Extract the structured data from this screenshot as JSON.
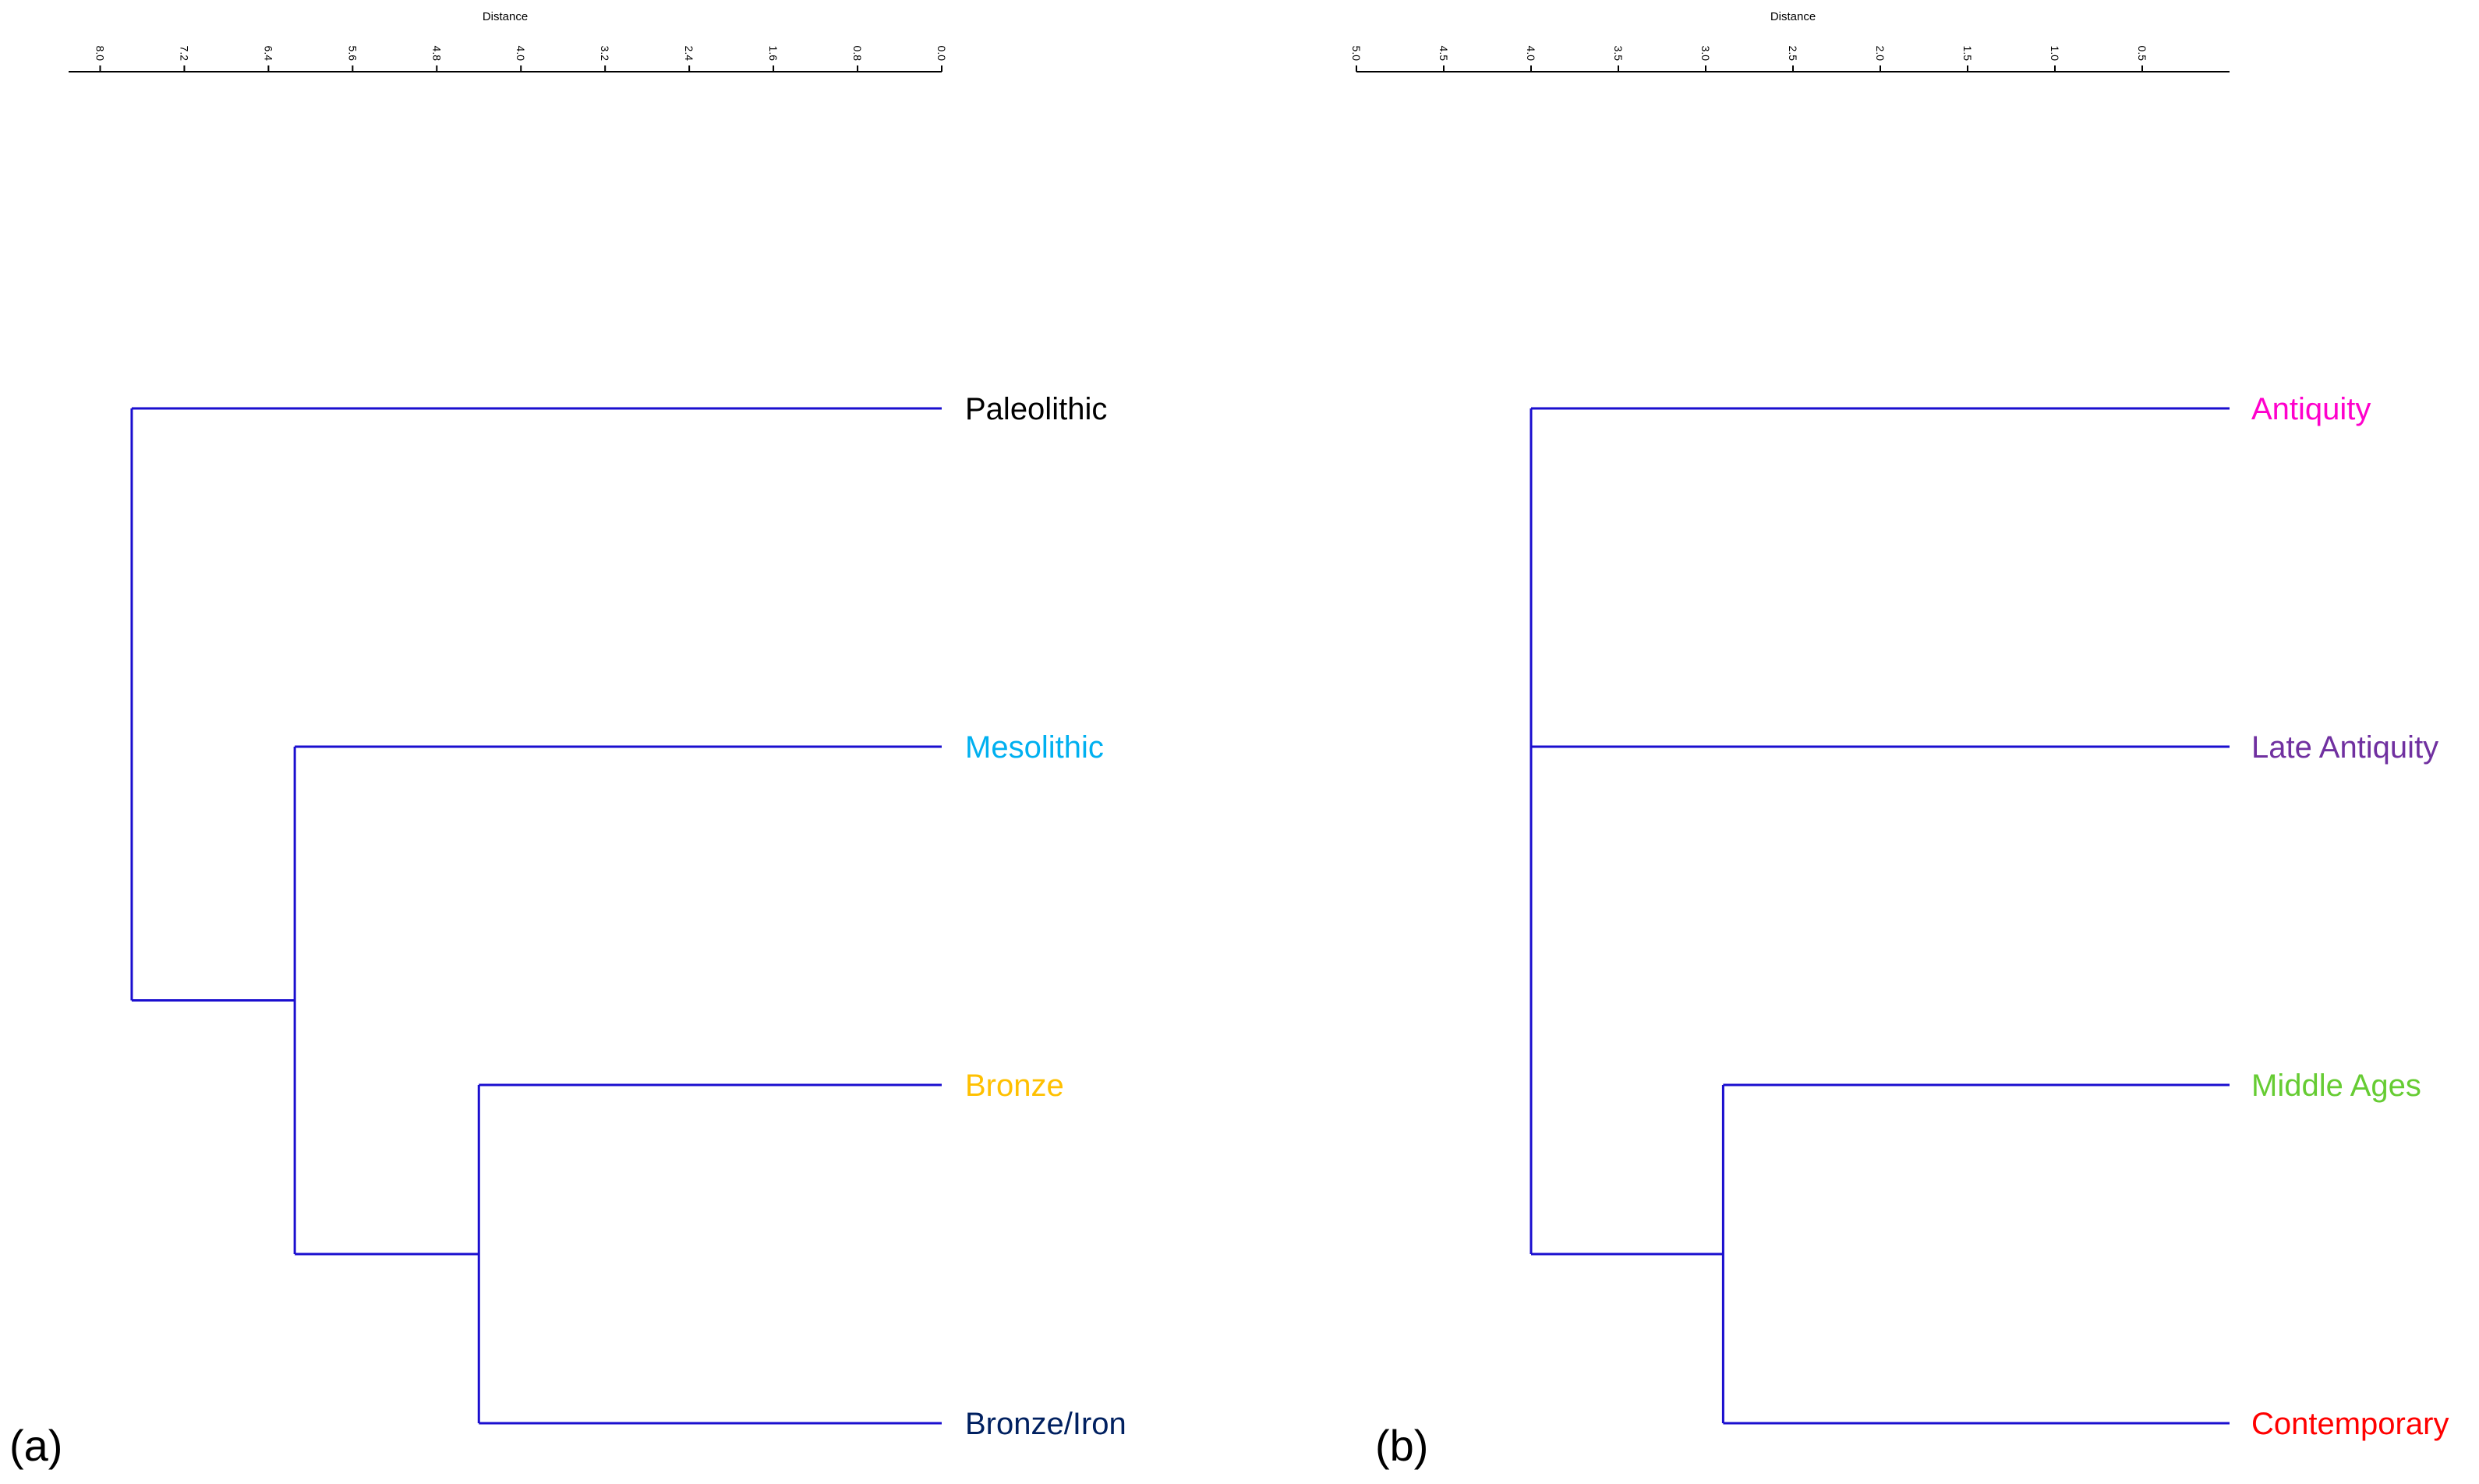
{
  "link_color": "#1a0ecf",
  "axis_color": "#000000",
  "chart_data": [
    {
      "type": "dendrogram",
      "panel_label": "(a)",
      "xlabel": "Distance",
      "axis_direction": "reversed",
      "xlim": [
        8.3,
        0.0
      ],
      "ticks": [
        8.0,
        7.2,
        6.4,
        5.6,
        4.8,
        4.0,
        3.2,
        2.4,
        1.6,
        0.8,
        0.0
      ],
      "tick_labels": [
        "8.0",
        "7.2",
        "6.4",
        "5.6",
        "4.8",
        "4.0",
        "3.2",
        "2.4",
        "1.6",
        "0.8",
        "0.0"
      ],
      "leaves": [
        {
          "label": "Paleolithic",
          "color": "#000000"
        },
        {
          "label": "Mesolithic",
          "color": "#00b0f0"
        },
        {
          "label": "Bronze",
          "color": "#ffc000"
        },
        {
          "label": "Bronze/Iron",
          "color": "#002060"
        }
      ],
      "merges": [
        {
          "a": 2,
          "b": 3,
          "distance": 4.4
        },
        {
          "a": 1,
          "b": "m0",
          "distance": 6.15
        },
        {
          "a": 0,
          "b": "m1",
          "distance": 7.7
        }
      ]
    },
    {
      "type": "dendrogram",
      "panel_label": "(b)",
      "xlabel": "Distance",
      "axis_direction": "reversed",
      "xlim": [
        5.0,
        0.0
      ],
      "ticks": [
        5.0,
        4.5,
        4.0,
        3.5,
        3.0,
        2.5,
        2.0,
        1.5,
        1.0,
        0.5
      ],
      "tick_labels": [
        "5.0",
        "4.5",
        "4.0",
        "3.5",
        "3.0",
        "2.5",
        "2.0",
        "1.5",
        "1.0",
        "0.5"
      ],
      "leaves": [
        {
          "label": "Antiquity",
          "color": "#ff00cc"
        },
        {
          "label": "Late Antiquity",
          "color": "#7030a0"
        },
        {
          "label": "Middle Ages",
          "color": "#66cc33"
        },
        {
          "label": "Contemporary",
          "color": "#ff0000"
        }
      ],
      "merges": [
        {
          "a": 2,
          "b": 3,
          "distance": 2.9
        },
        {
          "a": 0,
          "b": 1,
          "distance": 4.0
        },
        {
          "a": "m1",
          "b": "m0",
          "distance": 4.0
        }
      ]
    }
  ]
}
